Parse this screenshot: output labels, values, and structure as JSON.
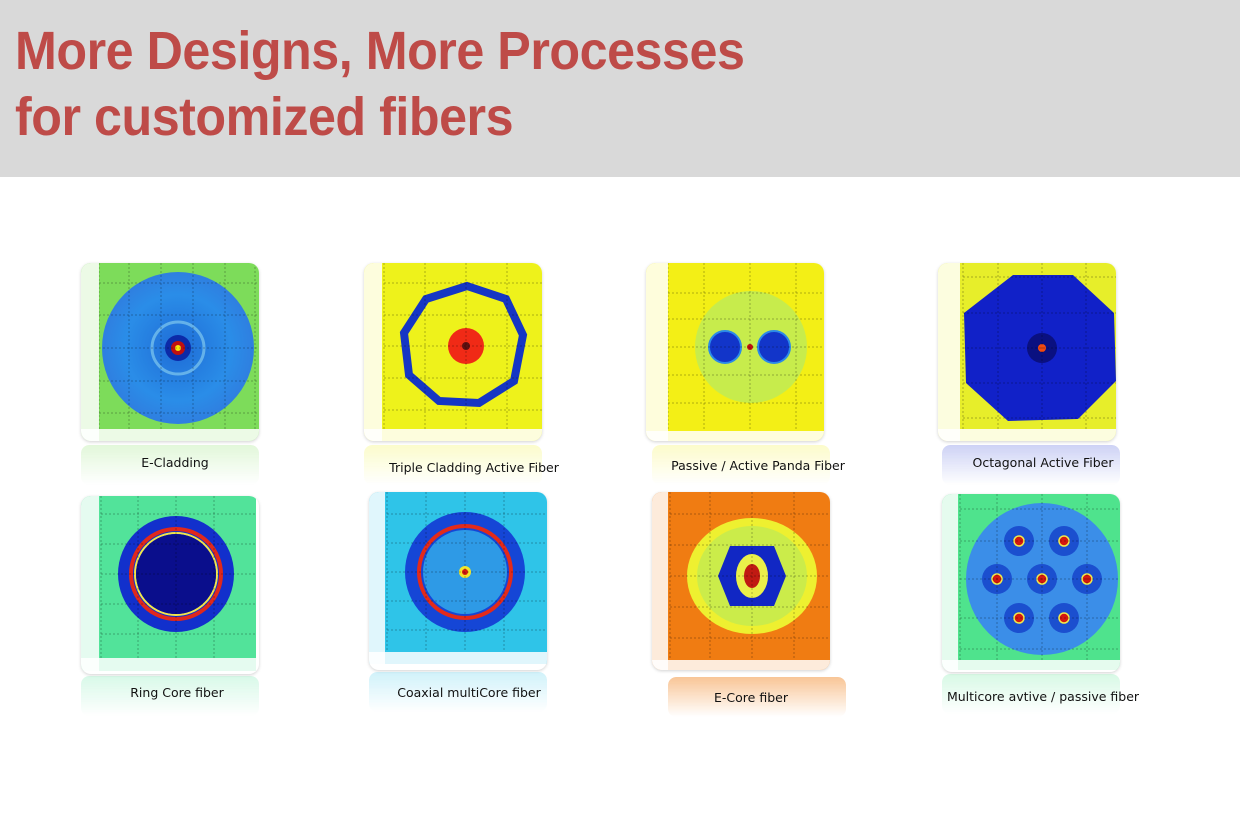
{
  "slide": {
    "title_line1": "More Designs, More Processes",
    "title_line2": "for customized fibers"
  },
  "colors": {
    "title": "#be4b48",
    "header_bg": "#d9d9d9"
  },
  "figures": [
    {
      "caption": "E-Cladding",
      "background": "#7ddc5a"
    },
    {
      "caption": "Triple Cladding Active Fiber",
      "background": "#eef21b"
    },
    {
      "caption": "Passive / Active Panda Fiber",
      "background": "#f3ef16"
    },
    {
      "caption": "Octagonal Active Fiber",
      "background": "#e7ee2a"
    },
    {
      "caption": "Ring Core fiber",
      "background": "#52e39a"
    },
    {
      "caption": "Coaxial multiCore fiber",
      "background": "#2fc4e8"
    },
    {
      "caption": "E-Core fiber",
      "background": "#f07c12"
    },
    {
      "caption": "Multicore avtive / passive fiber",
      "background": "#4fe38d"
    }
  ]
}
